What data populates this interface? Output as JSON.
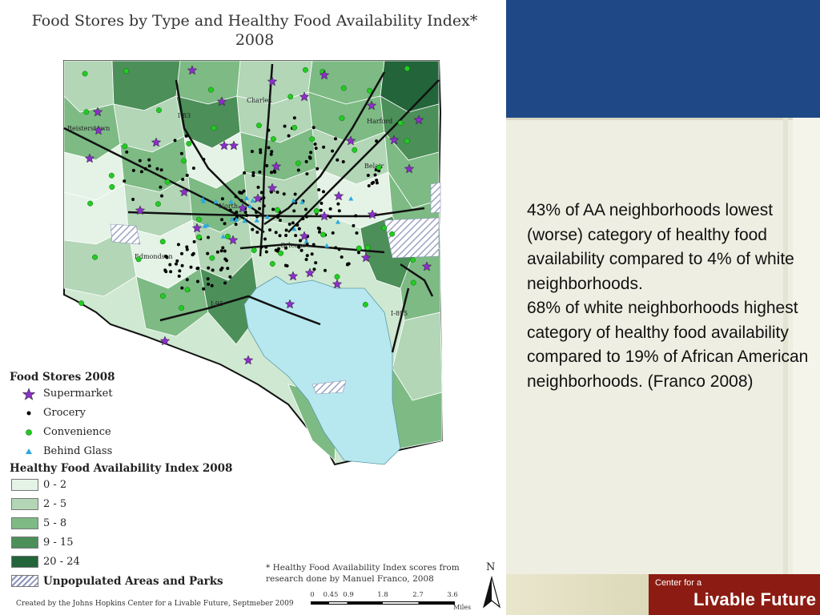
{
  "map": {
    "title_line1": "Food Stores by Type and Healthy Food Availability Index*",
    "title_line2": "2008",
    "labels": [
      "Charles",
      "Harford",
      "I-83",
      "Reisterstown",
      "Belair",
      "North",
      "Orleans",
      "Edmondson",
      "I-95",
      "I-895"
    ],
    "legend": {
      "stores_heading": "Food Stores 2008",
      "stores": [
        {
          "label": "Supermarket",
          "icon": "purple-star-icon",
          "color": "#8b2fc9"
        },
        {
          "label": "Grocery",
          "icon": "black-dot-icon",
          "color": "#000000"
        },
        {
          "label": "Convenience",
          "icon": "green-dot-icon",
          "color": "#22cc22"
        },
        {
          "label": "Behind Glass",
          "icon": "blue-triangle-icon",
          "color": "#2aa8e0"
        }
      ],
      "index_heading": "Healthy Food Availability Index 2008",
      "index_classes": [
        {
          "label": "0 - 2",
          "color": "#e4f3e6"
        },
        {
          "label": "2 - 5",
          "color": "#b2d6b6"
        },
        {
          "label": "5 - 8",
          "color": "#7dba84"
        },
        {
          "label": "9 - 15",
          "color": "#4c8f59"
        },
        {
          "label": "20 - 24",
          "color": "#23643a"
        }
      ],
      "unpopulated": "Unpopulated Areas and Parks",
      "water_color": "#b8e8ef"
    },
    "footnote": "* Healthy Food Availability Index scores from research done by Manuel Franco, 2008",
    "credit": "Created by the Johns Hopkins Center for a Livable Future, Septmeber 2009",
    "scale": {
      "ticks": [
        "0",
        "0.45",
        "0.9",
        "1.8",
        "2.7",
        "3.6"
      ],
      "unit": "Miles"
    },
    "north_label": "N"
  },
  "summary": {
    "paragraph1": "43% of AA neighborhoods lowest (worse) category of healthy food availability compared to 4% of white neighborhoods.",
    "paragraph2": "68% of white neighborhoods highest category of healthy food availability compared to 19% of African American neighborhoods. (Franco 2008)"
  },
  "logo": {
    "small_text": "Center for a",
    "big_text": "Livable Future",
    "color": "#8c1c13"
  },
  "theme": {
    "header_blue": "#1f4986",
    "panel_beige": "#efeee2"
  }
}
